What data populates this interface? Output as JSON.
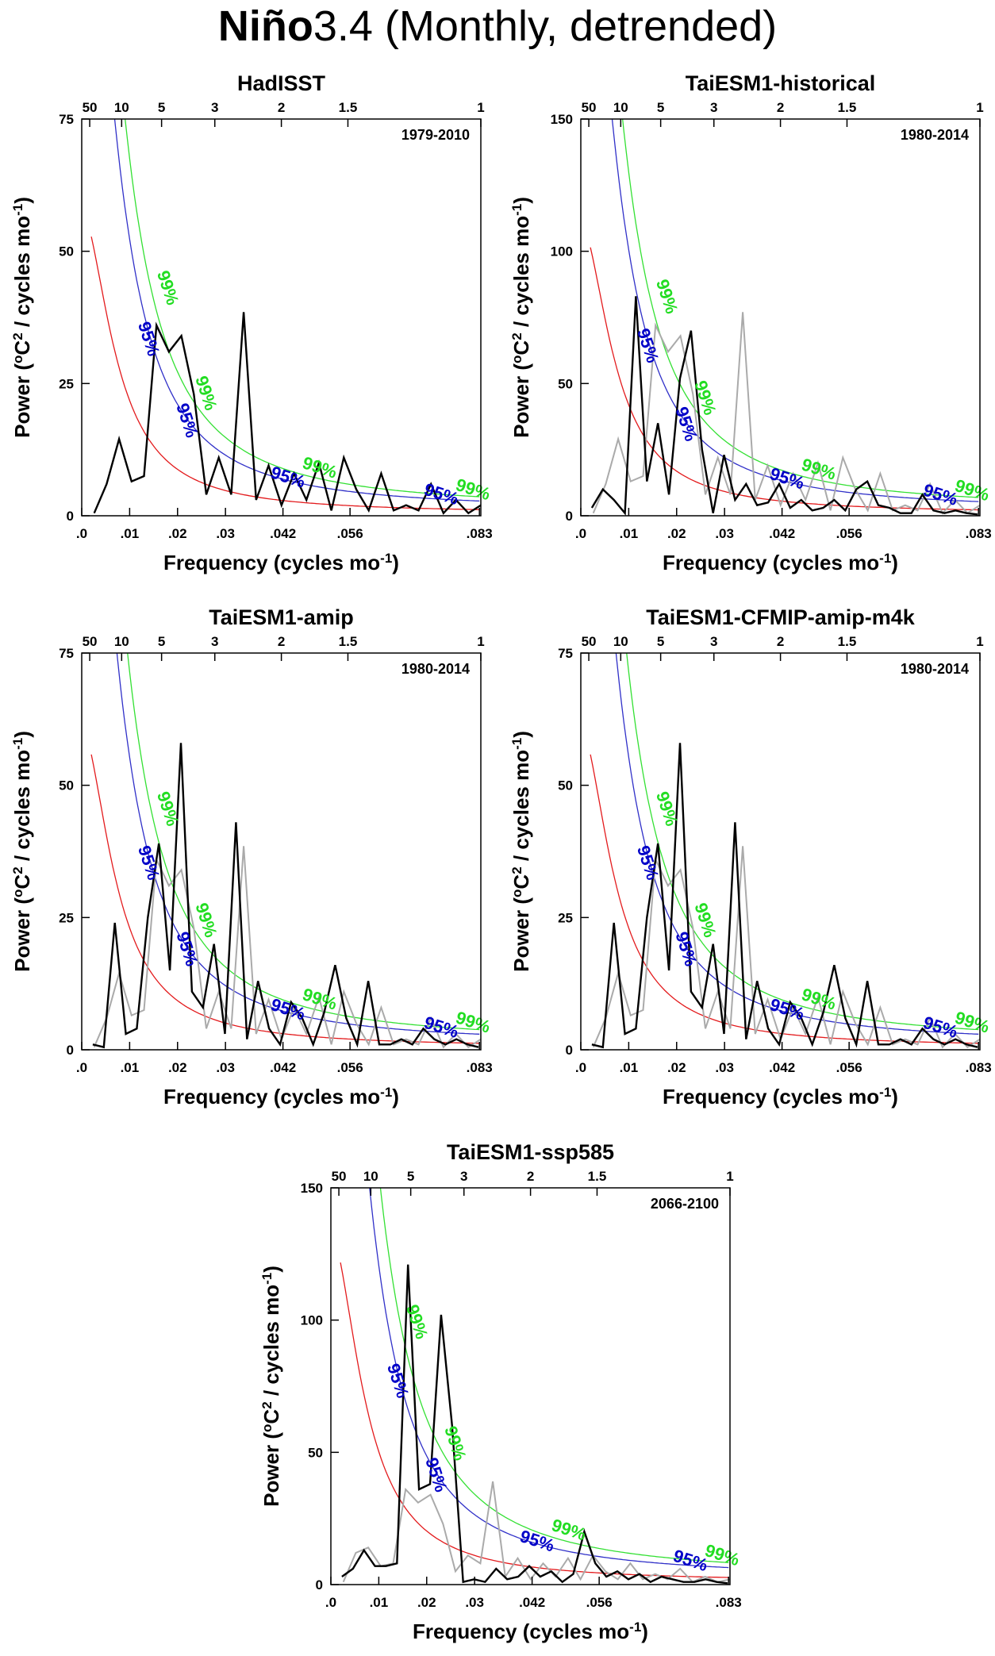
{
  "page_title": {
    "bold": "Niño",
    "rest": "3.4 (Monthly, detrended)"
  },
  "colors": {
    "spectrum": "#000000",
    "reference": "#aaaaaa",
    "markov": "#e31a1c",
    "sig95": "#3030c8",
    "sig99": "#33e033",
    "sig95_label": "#0000c8",
    "sig99_label": "#22dd22"
  },
  "common": {
    "xlabel": "Frequency (cycles mo",
    "xlabel_sup": "-1",
    "xlabel_end": ")",
    "ylabel_pre": "Power (",
    "ylabel_sup1": "o",
    "ylabel_mid": "C",
    "ylabel_sup2": "2",
    "ylabel_mid2": " / cycles mo",
    "ylabel_sup3": "-1",
    "ylabel_end": ")",
    "x_ticks": [
      0,
      0.01,
      0.02,
      0.03,
      0.042,
      0.056,
      0.083
    ],
    "x_tick_labels": [
      ".0",
      ".01",
      ".02",
      ".03",
      ".042",
      ".056",
      ".083"
    ],
    "top_ticks": [
      50,
      10,
      5,
      3,
      2,
      1.5,
      1
    ],
    "top_tick_labels": [
      "50",
      "10",
      "5",
      "3",
      "2",
      "1.5",
      "1"
    ],
    "sig95_label": "95%",
    "sig99_label": "99%"
  },
  "chart_data": [
    {
      "type": "line",
      "title": "HadISST",
      "period": "1979-2010",
      "xlim": [
        0,
        0.0833
      ],
      "ylim": [
        0,
        75
      ],
      "y_ticks": [
        0,
        25,
        50,
        75
      ],
      "y_tick_labels": [
        "0",
        "25",
        "50",
        "75"
      ],
      "markov_scale": 0.52,
      "series": [
        {
          "role": "spectrum",
          "x": [
            0.0026,
            0.0052,
            0.0078,
            0.0104,
            0.013,
            0.0156,
            0.0182,
            0.0208,
            0.0234,
            0.026,
            0.0286,
            0.0312,
            0.0338,
            0.0364,
            0.039,
            0.0417,
            0.0443,
            0.0469,
            0.0495,
            0.0521,
            0.0547,
            0.0573,
            0.0599,
            0.0625,
            0.0651,
            0.0677,
            0.0703,
            0.0729,
            0.0755,
            0.0781,
            0.0807,
            0.0833
          ],
          "y": [
            0.5,
            6,
            14.5,
            6.5,
            7.5,
            36,
            31,
            34,
            23,
            4,
            11,
            4,
            38.5,
            3,
            9.5,
            2,
            8,
            3,
            10,
            1,
            11,
            5,
            1,
            8,
            1,
            2,
            1,
            6,
            0.5,
            3,
            0.5,
            2
          ]
        }
      ]
    },
    {
      "type": "line",
      "title": "TaiESM1-historical",
      "period": "1980-2014",
      "xlim": [
        0,
        0.0833
      ],
      "ylim": [
        0,
        150
      ],
      "y_ticks": [
        0,
        50,
        100,
        150
      ],
      "y_tick_labels": [
        "0",
        "50",
        "100",
        "150"
      ],
      "markov_scale": 1.0,
      "series": [
        {
          "role": "reference",
          "x": [
            0.0026,
            0.0052,
            0.0078,
            0.0104,
            0.013,
            0.0156,
            0.0182,
            0.0208,
            0.0234,
            0.026,
            0.0286,
            0.0312,
            0.0338,
            0.0364,
            0.039,
            0.0417,
            0.0443,
            0.0469,
            0.0495,
            0.0521,
            0.0547,
            0.0573,
            0.0599,
            0.0625,
            0.0651,
            0.0677,
            0.0703,
            0.0729,
            0.0755,
            0.0781,
            0.0807,
            0.0833
          ],
          "y": [
            1,
            12,
            29,
            13,
            15,
            72,
            62,
            68,
            46,
            8,
            22,
            8,
            77,
            6,
            19,
            4,
            16,
            6,
            20,
            2,
            22,
            10,
            2,
            16,
            2,
            4,
            2,
            12,
            1,
            6,
            1,
            4
          ]
        },
        {
          "role": "spectrum",
          "x": [
            0.0023,
            0.0046,
            0.0069,
            0.0092,
            0.0115,
            0.0138,
            0.0161,
            0.0184,
            0.0207,
            0.023,
            0.0253,
            0.0276,
            0.0299,
            0.0322,
            0.0345,
            0.0368,
            0.0391,
            0.0414,
            0.0437,
            0.046,
            0.0483,
            0.0506,
            0.0529,
            0.0552,
            0.0575,
            0.0598,
            0.0621,
            0.0644,
            0.0667,
            0.069,
            0.0713,
            0.0736,
            0.0759,
            0.0782,
            0.0805,
            0.0828
          ],
          "y": [
            3,
            10,
            6,
            1,
            83,
            13,
            35,
            8,
            52,
            70,
            25,
            1,
            23,
            6,
            12,
            4,
            5,
            12,
            3,
            6,
            2,
            3,
            6,
            2,
            10,
            13,
            4,
            3,
            1,
            1,
            8,
            2,
            1,
            2,
            1,
            0.5
          ]
        }
      ]
    },
    {
      "type": "line",
      "title": "TaiESM1-amip",
      "period": "1980-2014",
      "xlim": [
        0,
        0.0833
      ],
      "ylim": [
        0,
        75
      ],
      "y_ticks": [
        0,
        25,
        50,
        75
      ],
      "y_tick_labels": [
        "0",
        "25",
        "50",
        "75"
      ],
      "markov_scale": 0.55,
      "series": [
        {
          "role": "reference",
          "x": [
            0.0026,
            0.0052,
            0.0078,
            0.0104,
            0.013,
            0.0156,
            0.0182,
            0.0208,
            0.0234,
            0.026,
            0.0286,
            0.0312,
            0.0338,
            0.0364,
            0.039,
            0.0417,
            0.0443,
            0.0469,
            0.0495,
            0.0521,
            0.0547,
            0.0573,
            0.0599,
            0.0625,
            0.0651,
            0.0677,
            0.0703,
            0.0729,
            0.0755,
            0.0781,
            0.0807,
            0.0833
          ],
          "y": [
            0.5,
            6,
            14.5,
            6.5,
            7.5,
            36,
            31,
            34,
            23,
            4,
            11,
            4,
            38.5,
            3,
            9.5,
            2,
            8,
            3,
            10,
            1,
            11,
            5,
            1,
            8,
            1,
            2,
            1,
            6,
            0.5,
            3,
            0.5,
            2
          ]
        },
        {
          "role": "spectrum",
          "x": [
            0.0023,
            0.0046,
            0.0069,
            0.0092,
            0.0115,
            0.0138,
            0.0161,
            0.0184,
            0.0207,
            0.023,
            0.0253,
            0.0276,
            0.0299,
            0.0322,
            0.0345,
            0.0368,
            0.0391,
            0.0414,
            0.0437,
            0.046,
            0.0483,
            0.0506,
            0.0529,
            0.0552,
            0.0575,
            0.0598,
            0.0621,
            0.0644,
            0.0667,
            0.069,
            0.0713,
            0.0736,
            0.0759,
            0.0782,
            0.0805,
            0.0828
          ],
          "y": [
            1,
            0.5,
            24,
            3,
            4,
            25,
            39,
            15,
            58,
            11,
            8,
            20,
            3,
            43,
            2,
            13,
            4,
            1,
            9,
            6,
            1,
            7,
            16,
            6,
            1,
            13,
            1,
            1,
            2,
            1,
            4,
            2,
            1,
            2,
            1,
            0.5
          ]
        }
      ]
    },
    {
      "type": "line",
      "title": "TaiESM1-CFMIP-amip-m4k",
      "period": "1980-2014",
      "xlim": [
        0,
        0.0833
      ],
      "ylim": [
        0,
        75
      ],
      "y_ticks": [
        0,
        25,
        50,
        75
      ],
      "y_tick_labels": [
        "0",
        "25",
        "50",
        "75"
      ],
      "markov_scale": 0.55,
      "series": [
        {
          "role": "reference",
          "x": [
            0.0026,
            0.0052,
            0.0078,
            0.0104,
            0.013,
            0.0156,
            0.0182,
            0.0208,
            0.0234,
            0.026,
            0.0286,
            0.0312,
            0.0338,
            0.0364,
            0.039,
            0.0417,
            0.0443,
            0.0469,
            0.0495,
            0.0521,
            0.0547,
            0.0573,
            0.0599,
            0.0625,
            0.0651,
            0.0677,
            0.0703,
            0.0729,
            0.0755,
            0.0781,
            0.0807,
            0.0833
          ],
          "y": [
            0.5,
            6,
            14.5,
            6.5,
            7.5,
            36,
            31,
            34,
            23,
            4,
            11,
            4,
            38.5,
            3,
            9.5,
            2,
            8,
            3,
            10,
            1,
            11,
            5,
            1,
            8,
            1,
            2,
            1,
            6,
            0.5,
            3,
            0.5,
            2
          ]
        },
        {
          "role": "spectrum",
          "x": [
            0.0023,
            0.0046,
            0.0069,
            0.0092,
            0.0115,
            0.0138,
            0.0161,
            0.0184,
            0.0207,
            0.023,
            0.0253,
            0.0276,
            0.0299,
            0.0322,
            0.0345,
            0.0368,
            0.0391,
            0.0414,
            0.0437,
            0.046,
            0.0483,
            0.0506,
            0.0529,
            0.0552,
            0.0575,
            0.0598,
            0.0621,
            0.0644,
            0.0667,
            0.069,
            0.0713,
            0.0736,
            0.0759,
            0.0782,
            0.0805,
            0.0828
          ],
          "y": [
            1,
            0.5,
            24,
            3,
            4,
            25,
            39,
            15,
            58,
            11,
            8,
            20,
            3,
            43,
            2,
            13,
            4,
            1,
            9,
            6,
            1,
            7,
            16,
            6,
            1,
            13,
            1,
            1,
            2,
            1,
            4,
            2,
            1,
            2,
            1,
            0.5
          ]
        }
      ]
    },
    {
      "type": "line",
      "title": "TaiESM1-ssp585",
      "period": "2066-2100",
      "xlim": [
        0,
        0.0833
      ],
      "ylim": [
        0,
        150
      ],
      "y_ticks": [
        0,
        50,
        100,
        150
      ],
      "y_tick_labels": [
        "0",
        "50",
        "100",
        "150"
      ],
      "markov_scale": 1.2,
      "series": [
        {
          "role": "reference",
          "x": [
            0.0026,
            0.0052,
            0.0078,
            0.0104,
            0.013,
            0.0156,
            0.0182,
            0.0208,
            0.0234,
            0.026,
            0.0286,
            0.0312,
            0.0338,
            0.0364,
            0.039,
            0.0417,
            0.0443,
            0.0469,
            0.0495,
            0.0521,
            0.0547,
            0.0573,
            0.0599,
            0.0625,
            0.0651,
            0.0677,
            0.0703,
            0.0729,
            0.0755,
            0.0781,
            0.0807,
            0.0833
          ],
          "y": [
            1,
            12,
            14,
            7,
            8,
            36,
            31,
            34,
            23,
            5,
            11,
            8,
            39,
            3,
            10,
            2,
            8,
            3,
            10,
            2,
            11,
            5,
            2,
            8,
            2,
            4,
            2,
            6,
            1,
            3,
            1,
            2
          ]
        },
        {
          "role": "spectrum",
          "x": [
            0.0023,
            0.0046,
            0.0069,
            0.0092,
            0.0115,
            0.0138,
            0.0161,
            0.0184,
            0.0207,
            0.023,
            0.0253,
            0.0276,
            0.0299,
            0.0322,
            0.0345,
            0.0368,
            0.0391,
            0.0414,
            0.0437,
            0.046,
            0.0483,
            0.0506,
            0.0529,
            0.0552,
            0.0575,
            0.0598,
            0.0621,
            0.0644,
            0.0667,
            0.069,
            0.0713,
            0.0736,
            0.0759,
            0.0782,
            0.0805,
            0.0828
          ],
          "y": [
            3,
            6,
            13,
            7,
            7,
            8,
            121,
            36,
            38,
            102,
            60,
            1,
            2,
            1,
            6,
            2,
            3,
            7,
            3,
            5,
            1,
            4,
            20,
            8,
            3,
            5,
            2,
            4,
            1,
            3,
            2,
            1,
            1,
            2,
            1,
            0.5
          ]
        }
      ]
    }
  ]
}
